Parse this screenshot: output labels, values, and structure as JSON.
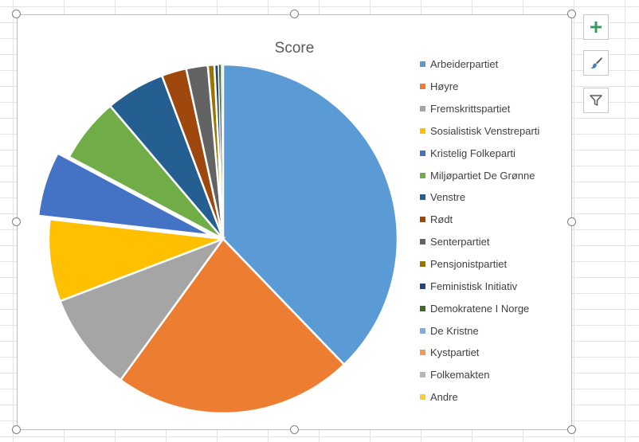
{
  "chart_data": {
    "type": "pie",
    "title": "Score",
    "legend_position": "right",
    "exploded": [
      "Kristelig Folkeparti"
    ],
    "categories": [
      "Arbeiderpartiet",
      "Høyre",
      "Fremskrittspartiet",
      "Sosialistisk Venstreparti",
      "Kristelig Folkeparti",
      "Miljøpartiet De Grønne",
      "Venstre",
      "Rødt",
      "Senterpartiet",
      "Pensjonistpartiet",
      "Feministisk Initiativ",
      "Demokratene I Norge",
      "De Kristne",
      "Kystpartiet",
      "Folkemakten",
      "Andre"
    ],
    "values": [
      37.8,
      22.2,
      9.2,
      7.6,
      6.0,
      6.0,
      5.5,
      2.3,
      2.0,
      0.6,
      0.4,
      0.2,
      0.1,
      0.05,
      0.03,
      0.02
    ],
    "colors": [
      "#5b9bd5",
      "#ed7d31",
      "#a5a5a5",
      "#ffc000",
      "#4472c4",
      "#70ad47",
      "#255e91",
      "#9e480e",
      "#636363",
      "#997300",
      "#264478",
      "#43682b",
      "#7cafdd",
      "#f1975a",
      "#b7b7b7",
      "#ffcd33"
    ]
  },
  "toolbar": {
    "add_element_icon": "plus-icon",
    "style_icon": "paintbrush-icon",
    "filter_icon": "funnel-icon"
  }
}
